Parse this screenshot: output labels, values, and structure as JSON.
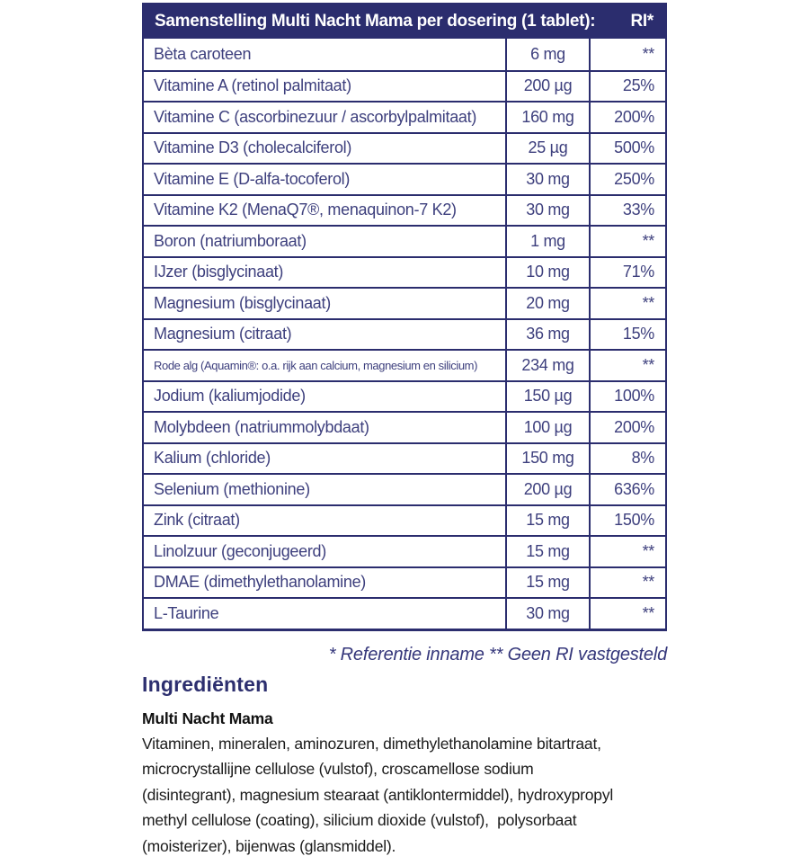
{
  "colors": {
    "navy": "#2b2d6e",
    "row_text": "#3d3f7d",
    "heading": "#2d2f6f",
    "body_text": "#1b1b1b"
  },
  "table": {
    "header": {
      "title": "Samenstelling Multi Nacht Mama per dosering (1 tablet):",
      "ri_label": "RI*"
    },
    "rows": [
      {
        "label": "Bèta caroteen",
        "amount": "6 mg",
        "ri": "**"
      },
      {
        "label": "Vitamine A (retinol palmitaat)",
        "amount": "200 µg",
        "ri": "25%"
      },
      {
        "label": "Vitamine C (ascorbinezuur / ascorbylpalmitaat)",
        "amount": "160 mg",
        "ri": "200%"
      },
      {
        "label": "Vitamine D3 (cholecalciferol)",
        "amount": "25 µg",
        "ri": "500%"
      },
      {
        "label": "Vitamine E (D-alfa-tocoferol)",
        "amount": "30 mg",
        "ri": "250%"
      },
      {
        "label": "Vitamine K2 (MenaQ7®, menaquinon-7 K2)",
        "amount": "30 mg",
        "ri": "33%"
      },
      {
        "label": "Boron (natriumboraat)",
        "amount": "1 mg",
        "ri": "**"
      },
      {
        "label": "IJzer (bisglycinaat)",
        "amount": "10 mg",
        "ri": "71%"
      },
      {
        "label": "Magnesium (bisglycinaat)",
        "amount": "20 mg",
        "ri": "**"
      },
      {
        "label": "Magnesium (citraat)",
        "amount": "36 mg",
        "ri": "15%"
      },
      {
        "label": "Rode alg (Aquamin®: o.a. rijk aan calcium, magnesium en silicium)",
        "amount": "234 mg",
        "ri": "**"
      },
      {
        "label": "Jodium (kaliumjodide)",
        "amount": "150 µg",
        "ri": "100%"
      },
      {
        "label": "Molybdeen (natriummolybdaat)",
        "amount": "100 µg",
        "ri": "200%"
      },
      {
        "label": "Kalium (chloride)",
        "amount": "150 mg",
        "ri": "8%"
      },
      {
        "label": "Selenium (methionine)",
        "amount": "200 µg",
        "ri": "636%"
      },
      {
        "label": "Zink (citraat)",
        "amount": "15 mg",
        "ri": "150%"
      },
      {
        "label": "Linolzuur (geconjugeerd)",
        "amount": "15 mg",
        "ri": "**"
      },
      {
        "label": "DMAE (dimethylethanolamine)",
        "amount": "15 mg",
        "ri": "**"
      },
      {
        "label": "L-Taurine",
        "amount": "30 mg",
        "ri": "**"
      }
    ]
  },
  "footnote": "* Referentie inname  ** Geen RI vastgesteld",
  "ingredients": {
    "heading": "Ingrediënten",
    "product": "Multi Nacht Mama",
    "text": "Vitaminen, mineralen, aminozuren, dimethylethanolamine bitartraat,\nmicrocrystallijne cellulose (vulstof), croscamellose sodium\n(disintegrant), magnesium stearaat (antiklontermiddel), hydroxypropyl\nmethyl cellulose (coating), silicium dioxide (vulstof),  polysorbaat\n(moisterizer), bijenwas (glansmiddel)."
  }
}
